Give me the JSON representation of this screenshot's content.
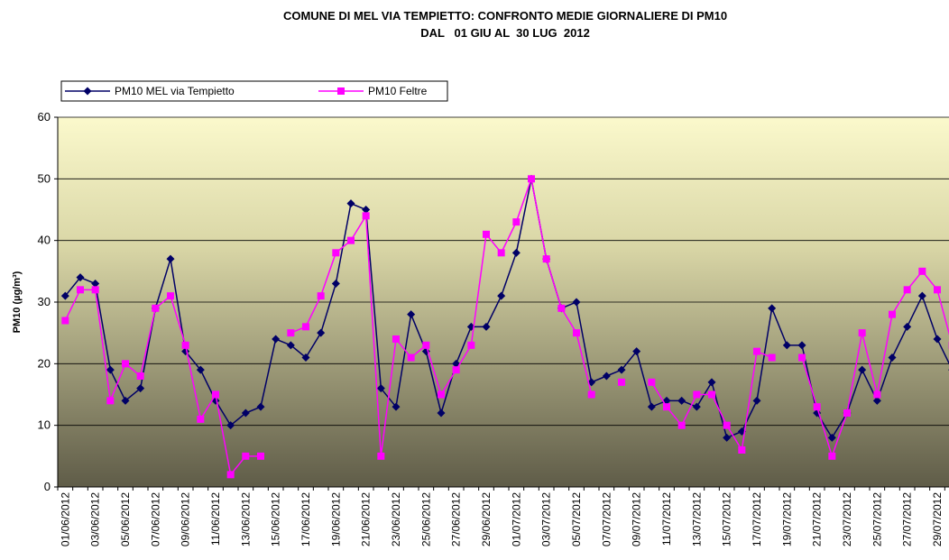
{
  "chart_data": {
    "type": "line",
    "title": "COMUNE DI MEL VIA TEMPIETTO: CONFRONTO MEDIE GIORNALIERE DI PM10",
    "subtitle": "DAL   01 GIU AL  30 LUG  2012",
    "y_label": "PM10 (µg/m³)",
    "categories": [
      "01/06/2012",
      null,
      "03/06/2012",
      null,
      "05/06/2012",
      null,
      "07/06/2012",
      null,
      "09/06/2012",
      null,
      "11/06/2012",
      null,
      "13/06/2012",
      null,
      "15/06/2012",
      null,
      "17/06/2012",
      null,
      "19/06/2012",
      null,
      "21/06/2012",
      null,
      "23/06/2012",
      null,
      "25/06/2012",
      null,
      "27/06/2012",
      null,
      "29/06/2012",
      null,
      "01/07/2012",
      null,
      "03/07/2012",
      null,
      "05/07/2012",
      null,
      "07/07/2012",
      null,
      "09/07/2012",
      null,
      "11/07/2012",
      null,
      "13/07/2012",
      null,
      "15/07/2012",
      null,
      "17/07/2012",
      null,
      "19/07/2012",
      null,
      "21/07/2012",
      null,
      "23/07/2012",
      null,
      "25/07/2012",
      null,
      "27/07/2012",
      null,
      "29/07/2012",
      null
    ],
    "series": [
      {
        "name": "PM10 MEL via Tempietto",
        "color": "#000066",
        "marker": "diamond",
        "values": [
          31,
          34,
          33,
          19,
          14,
          16,
          29,
          37,
          22,
          19,
          14,
          10,
          12,
          13,
          24,
          23,
          21,
          25,
          33,
          46,
          45,
          16,
          13,
          28,
          22,
          12,
          20,
          26,
          26,
          31,
          38,
          50,
          37,
          29,
          30,
          17,
          18,
          19,
          22,
          13,
          14,
          14,
          13,
          17,
          8,
          9,
          14,
          29,
          23,
          23,
          12,
          8,
          12,
          19,
          14,
          21,
          26,
          31,
          24,
          19
        ]
      },
      {
        "name": "PM10 Feltre",
        "color": "#ff00ff",
        "marker": "square",
        "values": [
          27,
          32,
          32,
          14,
          20,
          18,
          29,
          31,
          23,
          11,
          15,
          2,
          5,
          5,
          null,
          25,
          26,
          31,
          38,
          40,
          44,
          5,
          24,
          21,
          23,
          15,
          19,
          23,
          41,
          38,
          43,
          50,
          37,
          29,
          25,
          15,
          null,
          17,
          null,
          17,
          13,
          10,
          15,
          15,
          10,
          6,
          22,
          21,
          null,
          21,
          13,
          5,
          12,
          25,
          15,
          28,
          32,
          35,
          32,
          23
        ]
      }
    ],
    "ylim": [
      0,
      60
    ],
    "yticks": [
      0,
      10,
      20,
      30,
      40,
      50,
      60
    ],
    "grid": true,
    "legend": "top-left"
  }
}
